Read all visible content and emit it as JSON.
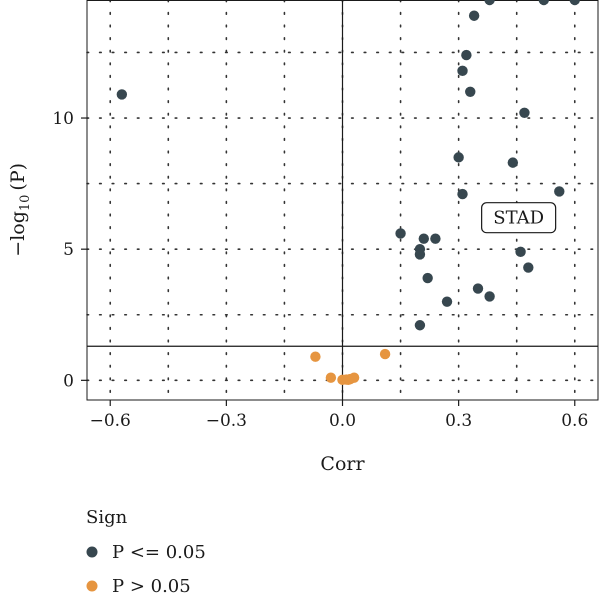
{
  "chart_data": {
    "type": "scatter",
    "xlabel": "Corr",
    "ylabel_main": "−log",
    "ylabel_sub": "10",
    "ylabel_tail": "(P)",
    "xlim": [
      -0.66,
      0.66
    ],
    "ylim": [
      -0.75,
      14.5
    ],
    "x_ticks": [
      -0.6,
      -0.3,
      0.0,
      0.3,
      0.6
    ],
    "x_tick_labels": [
      "−0.6",
      "−0.3",
      "0.0",
      "0.3",
      "0.6"
    ],
    "y_ticks": [
      0,
      5,
      10
    ],
    "y_tick_labels": [
      "0",
      "5",
      "10"
    ],
    "minor_grid_x": [
      -0.45,
      -0.15,
      0.15,
      0.45
    ],
    "minor_grid_y": [
      2.5,
      7.5,
      12.5
    ],
    "grid": "dotted",
    "hline": 1.3,
    "vline": 0.0,
    "annotation": {
      "text": "STAD",
      "x": 0.3,
      "y": 6.2
    },
    "legend": {
      "title": "Sign",
      "placement": "bottom-left"
    },
    "series": [
      {
        "name": "P <= 0.05",
        "color": "#37474f",
        "points": [
          [
            -0.57,
            10.9
          ],
          [
            0.38,
            14.5
          ],
          [
            0.52,
            14.5
          ],
          [
            0.6,
            14.5
          ],
          [
            0.34,
            13.9
          ],
          [
            0.32,
            12.4
          ],
          [
            0.31,
            11.8
          ],
          [
            0.33,
            11.0
          ],
          [
            0.47,
            10.2
          ],
          [
            0.3,
            8.5
          ],
          [
            0.44,
            8.3
          ],
          [
            0.56,
            7.2
          ],
          [
            0.31,
            7.1
          ],
          [
            0.15,
            5.6
          ],
          [
            0.21,
            5.4
          ],
          [
            0.24,
            5.4
          ],
          [
            0.2,
            5.0
          ],
          [
            0.2,
            4.8
          ],
          [
            0.46,
            4.9
          ],
          [
            0.48,
            4.3
          ],
          [
            0.22,
            3.9
          ],
          [
            0.35,
            3.5
          ],
          [
            0.38,
            3.2
          ],
          [
            0.27,
            3.0
          ],
          [
            0.2,
            2.1
          ]
        ]
      },
      {
        "name": "P > 0.05",
        "color": "#e69540",
        "points": [
          [
            -0.07,
            0.9
          ],
          [
            0.11,
            1.0
          ],
          [
            -0.03,
            0.1
          ],
          [
            0.0,
            0.02
          ],
          [
            0.01,
            0.03
          ],
          [
            0.02,
            0.05
          ],
          [
            0.03,
            0.1
          ],
          [
            0.015,
            0.02
          ]
        ]
      }
    ]
  }
}
